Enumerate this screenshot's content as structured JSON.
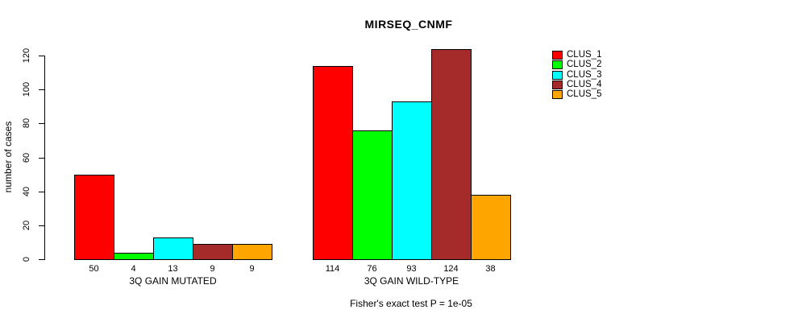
{
  "chart_data": {
    "type": "bar",
    "title": "MIRSEQ_CNMF",
    "ylabel": "number of cases",
    "ylim": [
      0,
      120
    ],
    "yticks": [
      0,
      20,
      40,
      60,
      80,
      100,
      120
    ],
    "grid": false,
    "legend_position": "right",
    "series": [
      {
        "name": "CLUS_1",
        "color": "#FF0000"
      },
      {
        "name": "CLUS_2",
        "color": "#00FF00"
      },
      {
        "name": "CLUS_3",
        "color": "#00FFFF"
      },
      {
        "name": "CLUS_4",
        "color": "#A52A2A"
      },
      {
        "name": "CLUS_5",
        "color": "#FFA500"
      }
    ],
    "groups": [
      {
        "label": "3Q GAIN MUTATED",
        "values": [
          50,
          4,
          13,
          9,
          9
        ]
      },
      {
        "label": "3Q GAIN WILD-TYPE",
        "values": [
          114,
          76,
          93,
          124,
          38
        ]
      }
    ],
    "annotation": "Fisher's exact test P = 1e-05"
  }
}
